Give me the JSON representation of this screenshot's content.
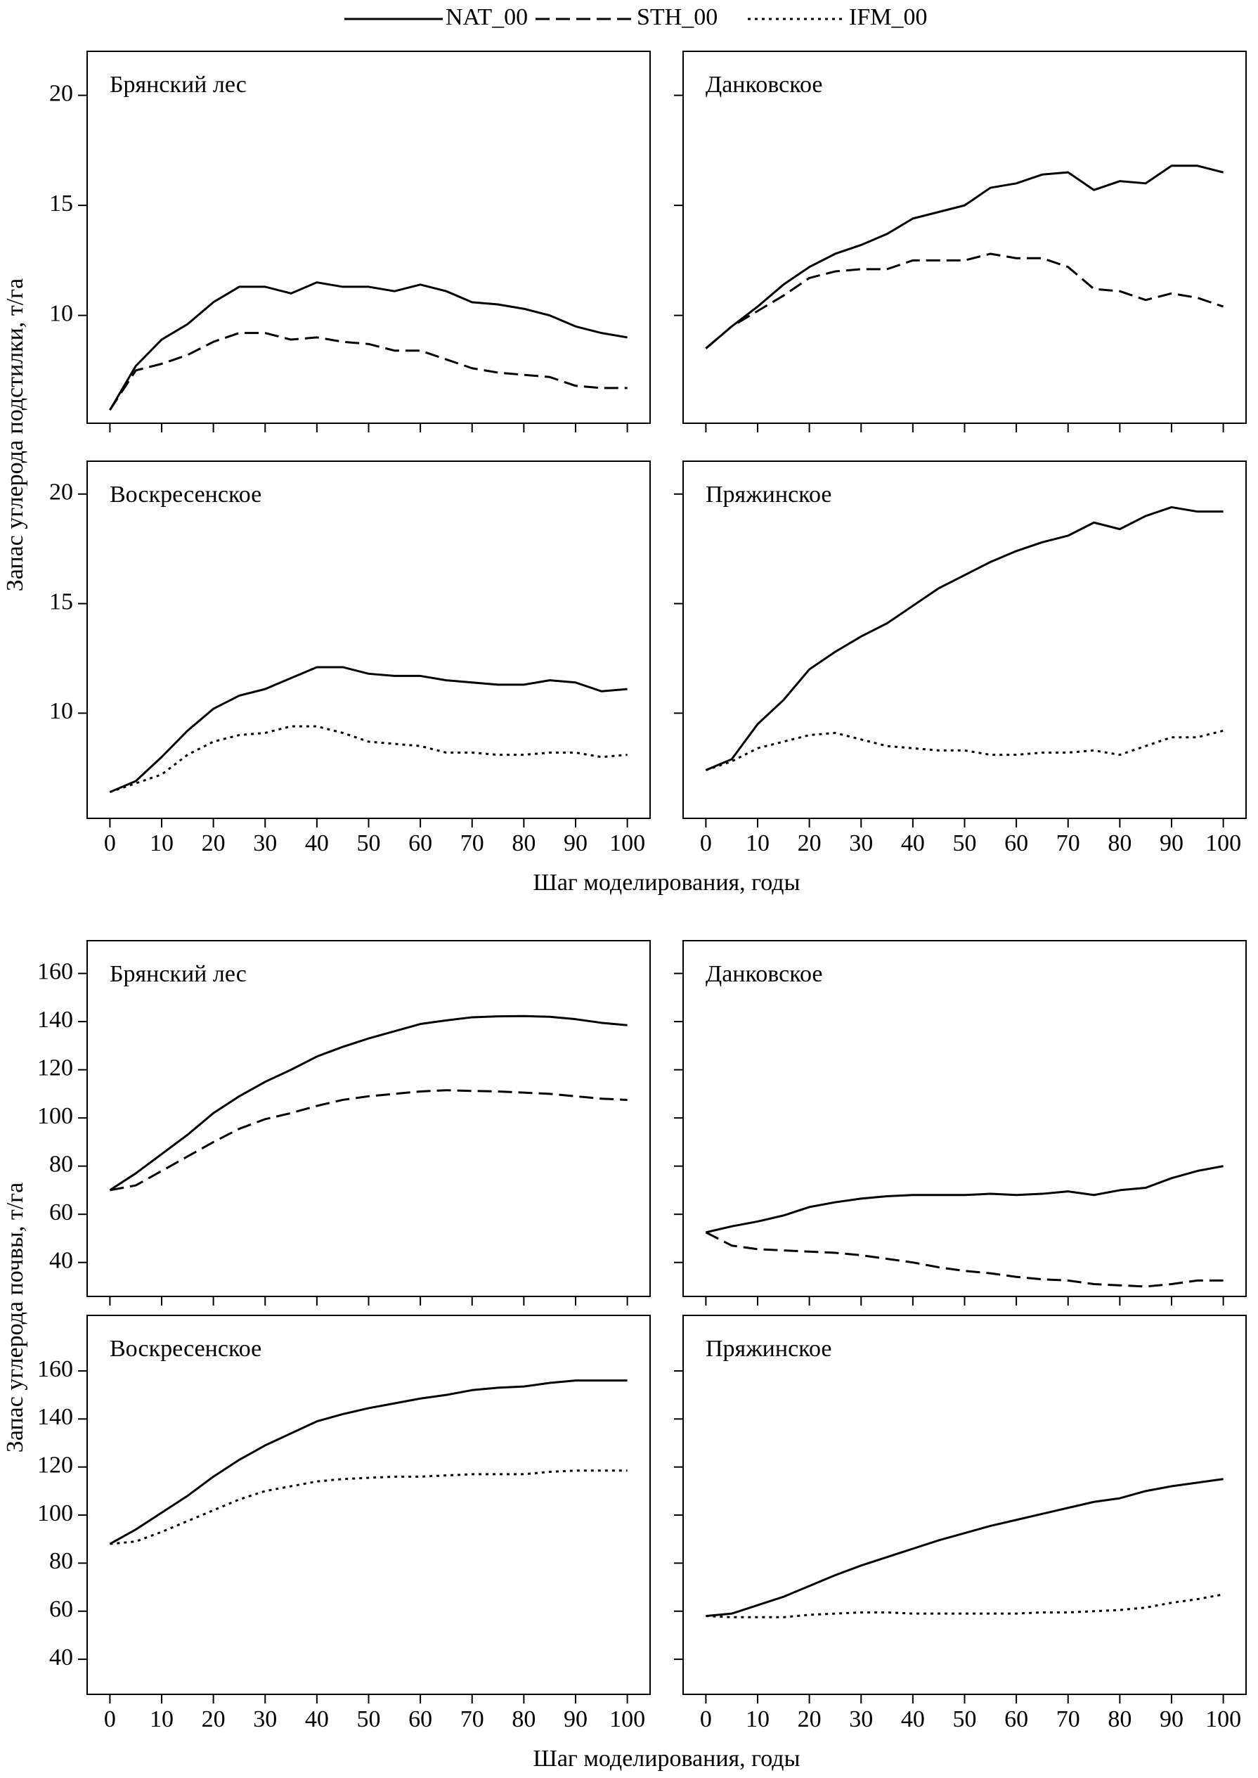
{
  "legend": [
    {
      "name": "NAT_00",
      "dash": "solid"
    },
    {
      "name": "STH_00",
      "dash": "dashed"
    },
    {
      "name": "IFM_00",
      "dash": "dotted"
    }
  ],
  "axis_labels": [
    {
      "y": "Запас углерода подстилки, т/га",
      "x": "Шаг моделирования, годы"
    },
    {
      "y": "Запас углерода почвы, т/га",
      "x": "Шаг моделирования, годы"
    }
  ],
  "chart_data": [
    {
      "type": "line",
      "title": "Брянский лес",
      "x": [
        0,
        5,
        10,
        15,
        20,
        25,
        30,
        35,
        40,
        45,
        50,
        55,
        60,
        65,
        70,
        75,
        80,
        85,
        90,
        95,
        100
      ],
      "series": [
        {
          "name": "NAT_00",
          "color": "#000000",
          "dash": "solid",
          "values": [
            5.7,
            7.7,
            8.9,
            9.6,
            10.6,
            11.3,
            11.3,
            11.0,
            11.5,
            11.3,
            11.3,
            11.1,
            11.4,
            11.1,
            10.6,
            10.5,
            10.3,
            10.0,
            9.5,
            9.2,
            9.0
          ]
        },
        {
          "name": "STH_00",
          "color": "#000000",
          "dash": "dashed",
          "values": [
            5.7,
            7.5,
            7.8,
            8.2,
            8.8,
            9.2,
            9.2,
            8.9,
            9.0,
            8.8,
            8.7,
            8.4,
            8.4,
            8.0,
            7.6,
            7.4,
            7.3,
            7.2,
            6.8,
            6.7,
            6.7
          ]
        }
      ],
      "xlim": [
        -4.4,
        104.4
      ],
      "ylim": [
        5.1,
        22.0
      ],
      "xticks": [
        0,
        10,
        20,
        30,
        40,
        50,
        60,
        70,
        80,
        90,
        100
      ],
      "yticks": [
        10,
        15,
        20
      ],
      "xtick_labels": false,
      "ytick_labels": true
    },
    {
      "type": "line",
      "title": "Данковское",
      "x": [
        0,
        5,
        10,
        15,
        20,
        25,
        30,
        35,
        40,
        45,
        50,
        55,
        60,
        65,
        70,
        75,
        80,
        85,
        90,
        95,
        100
      ],
      "series": [
        {
          "name": "NAT_00",
          "color": "#000000",
          "dash": "solid",
          "values": [
            8.5,
            9.5,
            10.4,
            11.4,
            12.2,
            12.8,
            13.2,
            13.7,
            14.4,
            14.7,
            15.0,
            15.8,
            16.0,
            16.4,
            16.5,
            15.7,
            16.1,
            16.0,
            16.8,
            16.8,
            16.5
          ]
        },
        {
          "name": "STH_00",
          "color": "#000000",
          "dash": "dashed",
          "values": [
            8.5,
            9.5,
            10.2,
            10.9,
            11.7,
            12.0,
            12.1,
            12.1,
            12.5,
            12.5,
            12.5,
            12.8,
            12.6,
            12.6,
            12.2,
            11.2,
            11.1,
            10.7,
            11.0,
            10.8,
            10.4
          ]
        }
      ],
      "xlim": [
        -4.4,
        104.4
      ],
      "ylim": [
        5.1,
        22.0
      ],
      "xticks": [
        0,
        10,
        20,
        30,
        40,
        50,
        60,
        70,
        80,
        90,
        100
      ],
      "yticks": [
        10,
        15,
        20
      ],
      "xtick_labels": false,
      "ytick_labels": false
    },
    {
      "type": "line",
      "title": "Воскресенское",
      "x": [
        0,
        5,
        10,
        15,
        20,
        25,
        30,
        35,
        40,
        45,
        50,
        55,
        60,
        65,
        70,
        75,
        80,
        85,
        90,
        95,
        100
      ],
      "series": [
        {
          "name": "NAT_00",
          "color": "#000000",
          "dash": "solid",
          "values": [
            6.4,
            6.9,
            8.0,
            9.2,
            10.2,
            10.8,
            11.1,
            11.6,
            12.1,
            12.1,
            11.8,
            11.7,
            11.7,
            11.5,
            11.4,
            11.3,
            11.3,
            11.5,
            11.4,
            11.0,
            11.1
          ]
        },
        {
          "name": "IFM_00",
          "color": "#000000",
          "dash": "dotted",
          "values": [
            6.4,
            6.8,
            7.2,
            8.1,
            8.7,
            9.0,
            9.1,
            9.4,
            9.4,
            9.1,
            8.7,
            8.6,
            8.5,
            8.2,
            8.2,
            8.1,
            8.1,
            8.2,
            8.2,
            8.0,
            8.1
          ]
        }
      ],
      "xlim": [
        -4.4,
        104.4
      ],
      "ylim": [
        5.2,
        21.5
      ],
      "xticks": [
        0,
        10,
        20,
        30,
        40,
        50,
        60,
        70,
        80,
        90,
        100
      ],
      "yticks": [
        10,
        15,
        20
      ],
      "xtick_labels": true,
      "ytick_labels": true
    },
    {
      "type": "line",
      "title": "Пряжинское",
      "x": [
        0,
        5,
        10,
        15,
        20,
        25,
        30,
        35,
        40,
        45,
        50,
        55,
        60,
        65,
        70,
        75,
        80,
        85,
        90,
        95,
        100
      ],
      "series": [
        {
          "name": "NAT_00",
          "color": "#000000",
          "dash": "solid",
          "values": [
            7.4,
            7.9,
            9.5,
            10.6,
            12.0,
            12.8,
            13.5,
            14.1,
            14.9,
            15.7,
            16.3,
            16.9,
            17.4,
            17.8,
            18.1,
            18.7,
            18.4,
            19.0,
            19.4,
            19.2,
            19.2
          ]
        },
        {
          "name": "IFM_00",
          "color": "#000000",
          "dash": "dotted",
          "values": [
            7.4,
            7.8,
            8.4,
            8.7,
            9.0,
            9.1,
            8.8,
            8.5,
            8.4,
            8.3,
            8.3,
            8.1,
            8.1,
            8.2,
            8.2,
            8.3,
            8.1,
            8.5,
            8.9,
            8.9,
            9.2
          ]
        }
      ],
      "xlim": [
        -4.4,
        104.4
      ],
      "ylim": [
        5.2,
        21.5
      ],
      "xticks": [
        0,
        10,
        20,
        30,
        40,
        50,
        60,
        70,
        80,
        90,
        100
      ],
      "yticks": [
        10,
        15,
        20
      ],
      "xtick_labels": true,
      "ytick_labels": false
    },
    {
      "type": "line",
      "title": "Брянский лес",
      "x": [
        0,
        5,
        10,
        15,
        20,
        25,
        30,
        35,
        40,
        45,
        50,
        55,
        60,
        65,
        70,
        75,
        80,
        85,
        90,
        95,
        100
      ],
      "series": [
        {
          "name": "NAT_00",
          "color": "#000000",
          "dash": "solid",
          "values": [
            70,
            77,
            85,
            93,
            102,
            109,
            115,
            120,
            125.5,
            129.5,
            133,
            136,
            139,
            140.5,
            141.8,
            142.2,
            142.3,
            142,
            141,
            139.5,
            138.5
          ]
        },
        {
          "name": "STH_00",
          "color": "#000000",
          "dash": "dashed",
          "values": [
            70,
            72,
            78,
            84,
            90,
            95.5,
            99.5,
            102,
            105,
            107.5,
            109,
            110,
            111,
            111.5,
            111.2,
            111,
            110.5,
            110,
            109,
            108,
            107.5
          ]
        }
      ],
      "xlim": [
        -4.4,
        104.4
      ],
      "ylim": [
        25.9,
        173.6
      ],
      "xticks": [
        0,
        10,
        20,
        30,
        40,
        50,
        60,
        70,
        80,
        90,
        100
      ],
      "yticks": [
        40,
        60,
        80,
        100,
        120,
        140,
        160
      ],
      "xtick_labels": false,
      "ytick_labels": true
    },
    {
      "type": "line",
      "title": "Данковское",
      "x": [
        0,
        5,
        10,
        15,
        20,
        25,
        30,
        35,
        40,
        45,
        50,
        55,
        60,
        65,
        70,
        75,
        80,
        85,
        90,
        95,
        100
      ],
      "series": [
        {
          "name": "NAT_00",
          "color": "#000000",
          "dash": "solid",
          "values": [
            52.5,
            55,
            57,
            59.5,
            63,
            65,
            66.5,
            67.5,
            68,
            68,
            68,
            68.5,
            68,
            68.5,
            69.5,
            68,
            70,
            71,
            75,
            78,
            80
          ]
        },
        {
          "name": "STH_00",
          "color": "#000000",
          "dash": "dashed",
          "values": [
            52.5,
            47,
            45.5,
            45,
            44.5,
            44,
            43,
            41.5,
            40,
            38,
            36.5,
            35.5,
            34,
            33,
            32.5,
            31,
            30.5,
            30,
            31,
            32.5,
            32.5
          ]
        }
      ],
      "xlim": [
        -4.4,
        104.4
      ],
      "ylim": [
        25.9,
        173.6
      ],
      "xticks": [
        0,
        10,
        20,
        30,
        40,
        50,
        60,
        70,
        80,
        90,
        100
      ],
      "yticks": [
        40,
        60,
        80,
        100,
        120,
        140,
        160
      ],
      "xtick_labels": false,
      "ytick_labels": false
    },
    {
      "type": "line",
      "title": "Воскресенское",
      "x": [
        0,
        5,
        10,
        15,
        20,
        25,
        30,
        35,
        40,
        45,
        50,
        55,
        60,
        65,
        70,
        75,
        80,
        85,
        90,
        95,
        100
      ],
      "series": [
        {
          "name": "NAT_00",
          "color": "#000000",
          "dash": "solid",
          "values": [
            88,
            94,
            101,
            108,
            116,
            123,
            129,
            134,
            139,
            142,
            144.5,
            146.5,
            148.5,
            150,
            152,
            153,
            153.5,
            155,
            156,
            156,
            156
          ]
        },
        {
          "name": "IFM_00",
          "color": "#000000",
          "dash": "dotted",
          "values": [
            88,
            89,
            93,
            97.5,
            102,
            106.5,
            110,
            112,
            114,
            115,
            115.5,
            116,
            116,
            116.5,
            117,
            117,
            117,
            118,
            118.5,
            118.5,
            118.5
          ]
        }
      ],
      "xlim": [
        -4.4,
        104.4
      ],
      "ylim": [
        25.4,
        183.1
      ],
      "xticks": [
        0,
        10,
        20,
        30,
        40,
        50,
        60,
        70,
        80,
        90,
        100
      ],
      "yticks": [
        40,
        60,
        80,
        100,
        120,
        140,
        160
      ],
      "xtick_labels": true,
      "ytick_labels": true
    },
    {
      "type": "line",
      "title": "Пряжинское",
      "x": [
        0,
        5,
        10,
        15,
        20,
        25,
        30,
        35,
        40,
        45,
        50,
        55,
        60,
        65,
        70,
        75,
        80,
        85,
        90,
        95,
        100
      ],
      "series": [
        {
          "name": "NAT_00",
          "color": "#000000",
          "dash": "solid",
          "values": [
            58,
            59,
            62.5,
            66,
            70.5,
            75,
            79,
            82.5,
            86,
            89.5,
            92.5,
            95.5,
            98,
            100.5,
            103,
            105.5,
            107,
            110,
            112,
            113.5,
            115
          ]
        },
        {
          "name": "IFM_00",
          "color": "#000000",
          "dash": "dotted",
          "values": [
            58,
            57.5,
            57.5,
            57.5,
            58.5,
            59,
            59.5,
            59.5,
            59,
            59,
            59,
            59,
            59,
            59.5,
            59.5,
            60,
            60.5,
            61.5,
            63.5,
            65,
            67
          ]
        }
      ],
      "xlim": [
        -4.4,
        104.4
      ],
      "ylim": [
        25.4,
        183.1
      ],
      "xticks": [
        0,
        10,
        20,
        30,
        40,
        50,
        60,
        70,
        80,
        90,
        100
      ],
      "yticks": [
        40,
        60,
        80,
        100,
        120,
        140,
        160
      ],
      "xtick_labels": true,
      "ytick_labels": false
    }
  ]
}
